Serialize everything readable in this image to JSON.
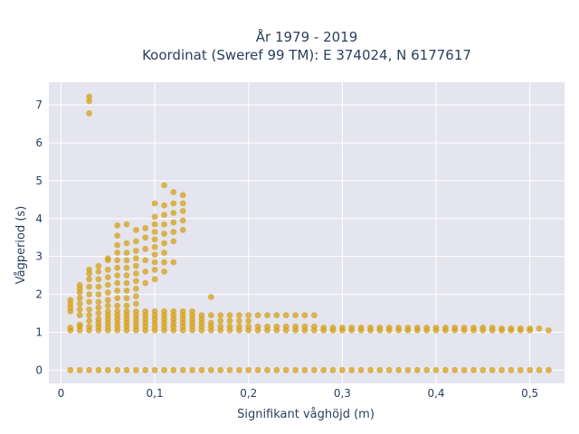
{
  "chart_data": {
    "type": "scatter",
    "title_line1": "År 1979 - 2019",
    "title_line2": "Koordinat (Sweref 99 TM): E 374024, N 6177617",
    "xlabel": "Signifikant våghöjd (m)",
    "ylabel": "Vågperiod (s)",
    "xlim": [
      -0.013,
      0.537
    ],
    "ylim": [
      -0.35,
      7.6
    ],
    "x_ticks": [
      0,
      0.1,
      0.2,
      0.3,
      0.4,
      0.5
    ],
    "x_tick_labels": [
      "0",
      "0,1",
      "0,2",
      "0,3",
      "0,4",
      "0,5"
    ],
    "y_ticks": [
      0,
      1,
      2,
      3,
      4,
      5,
      6,
      7
    ],
    "y_tick_labels": [
      "0",
      "1",
      "2",
      "3",
      "4",
      "5",
      "6",
      "7"
    ],
    "grid": true,
    "marker_color": "#d4a017",
    "plot_background": "#e5e5ef",
    "points": [
      [
        0.01,
        0.0
      ],
      [
        0.02,
        0.0
      ],
      [
        0.03,
        0.0
      ],
      [
        0.04,
        0.0
      ],
      [
        0.05,
        0.0
      ],
      [
        0.06,
        0.0
      ],
      [
        0.07,
        0.0
      ],
      [
        0.08,
        0.0
      ],
      [
        0.09,
        0.0
      ],
      [
        0.1,
        0.0
      ],
      [
        0.11,
        0.0
      ],
      [
        0.12,
        0.0
      ],
      [
        0.13,
        0.0
      ],
      [
        0.14,
        0.0
      ],
      [
        0.15,
        0.0
      ],
      [
        0.16,
        0.0
      ],
      [
        0.17,
        0.0
      ],
      [
        0.18,
        0.0
      ],
      [
        0.19,
        0.0
      ],
      [
        0.2,
        0.0
      ],
      [
        0.21,
        0.0
      ],
      [
        0.22,
        0.0
      ],
      [
        0.23,
        0.0
      ],
      [
        0.24,
        0.0
      ],
      [
        0.25,
        0.0
      ],
      [
        0.26,
        0.0
      ],
      [
        0.27,
        0.0
      ],
      [
        0.28,
        0.0
      ],
      [
        0.29,
        0.0
      ],
      [
        0.3,
        0.0
      ],
      [
        0.31,
        0.0
      ],
      [
        0.32,
        0.0
      ],
      [
        0.33,
        0.0
      ],
      [
        0.34,
        0.0
      ],
      [
        0.35,
        0.0
      ],
      [
        0.36,
        0.0
      ],
      [
        0.37,
        0.0
      ],
      [
        0.38,
        0.0
      ],
      [
        0.39,
        0.0
      ],
      [
        0.4,
        0.0
      ],
      [
        0.41,
        0.0
      ],
      [
        0.42,
        0.0
      ],
      [
        0.43,
        0.0
      ],
      [
        0.44,
        0.0
      ],
      [
        0.45,
        0.0
      ],
      [
        0.46,
        0.0
      ],
      [
        0.47,
        0.0
      ],
      [
        0.48,
        0.0
      ],
      [
        0.49,
        0.0
      ],
      [
        0.5,
        0.0
      ],
      [
        0.51,
        0.0
      ],
      [
        0.52,
        0.0
      ],
      [
        0.01,
        1.05
      ],
      [
        0.01,
        1.12
      ],
      [
        0.01,
        1.55
      ],
      [
        0.01,
        1.65
      ],
      [
        0.01,
        1.75
      ],
      [
        0.01,
        1.85
      ],
      [
        0.02,
        1.05
      ],
      [
        0.02,
        1.15
      ],
      [
        0.02,
        1.2
      ],
      [
        0.02,
        1.45
      ],
      [
        0.02,
        1.6
      ],
      [
        0.02,
        1.75
      ],
      [
        0.02,
        1.9
      ],
      [
        0.02,
        2.05
      ],
      [
        0.02,
        2.15
      ],
      [
        0.02,
        2.25
      ],
      [
        0.03,
        1.05
      ],
      [
        0.03,
        1.15
      ],
      [
        0.03,
        1.3
      ],
      [
        0.03,
        1.45
      ],
      [
        0.03,
        1.6
      ],
      [
        0.03,
        1.8
      ],
      [
        0.03,
        2.0
      ],
      [
        0.03,
        2.2
      ],
      [
        0.03,
        2.4
      ],
      [
        0.03,
        2.55
      ],
      [
        0.03,
        2.65
      ],
      [
        0.03,
        6.78
      ],
      [
        0.03,
        7.1
      ],
      [
        0.03,
        7.22
      ],
      [
        0.04,
        1.05
      ],
      [
        0.04,
        1.15
      ],
      [
        0.04,
        1.25
      ],
      [
        0.04,
        1.35
      ],
      [
        0.04,
        1.5
      ],
      [
        0.04,
        1.65
      ],
      [
        0.04,
        1.8
      ],
      [
        0.04,
        2.0
      ],
      [
        0.04,
        2.2
      ],
      [
        0.04,
        2.4
      ],
      [
        0.04,
        2.6
      ],
      [
        0.04,
        2.75
      ],
      [
        0.05,
        1.05
      ],
      [
        0.05,
        1.15
      ],
      [
        0.05,
        1.25
      ],
      [
        0.05,
        1.35
      ],
      [
        0.05,
        1.45
      ],
      [
        0.05,
        1.55
      ],
      [
        0.05,
        1.7
      ],
      [
        0.05,
        1.85
      ],
      [
        0.05,
        2.05
      ],
      [
        0.05,
        2.25
      ],
      [
        0.05,
        2.45
      ],
      [
        0.05,
        2.65
      ],
      [
        0.05,
        2.9
      ],
      [
        0.05,
        2.95
      ],
      [
        0.06,
        1.05
      ],
      [
        0.06,
        1.15
      ],
      [
        0.06,
        1.25
      ],
      [
        0.06,
        1.35
      ],
      [
        0.06,
        1.45
      ],
      [
        0.06,
        1.55
      ],
      [
        0.06,
        1.7
      ],
      [
        0.06,
        1.9
      ],
      [
        0.06,
        2.1
      ],
      [
        0.06,
        2.3
      ],
      [
        0.06,
        2.5
      ],
      [
        0.06,
        2.7
      ],
      [
        0.06,
        2.9
      ],
      [
        0.06,
        3.1
      ],
      [
        0.06,
        3.3
      ],
      [
        0.06,
        3.55
      ],
      [
        0.06,
        3.82
      ],
      [
        0.07,
        1.05
      ],
      [
        0.07,
        1.15
      ],
      [
        0.07,
        1.25
      ],
      [
        0.07,
        1.35
      ],
      [
        0.07,
        1.45
      ],
      [
        0.07,
        1.55
      ],
      [
        0.07,
        1.7
      ],
      [
        0.07,
        1.9
      ],
      [
        0.07,
        2.1
      ],
      [
        0.07,
        2.3
      ],
      [
        0.07,
        2.5
      ],
      [
        0.07,
        2.7
      ],
      [
        0.07,
        2.9
      ],
      [
        0.07,
        3.1
      ],
      [
        0.07,
        3.35
      ],
      [
        0.07,
        3.85
      ],
      [
        0.08,
        1.05
      ],
      [
        0.08,
        1.15
      ],
      [
        0.08,
        1.25
      ],
      [
        0.08,
        1.35
      ],
      [
        0.08,
        1.45
      ],
      [
        0.08,
        1.55
      ],
      [
        0.08,
        1.75
      ],
      [
        0.08,
        1.95
      ],
      [
        0.08,
        2.15
      ],
      [
        0.08,
        2.35
      ],
      [
        0.08,
        2.55
      ],
      [
        0.08,
        2.75
      ],
      [
        0.08,
        2.95
      ],
      [
        0.08,
        3.15
      ],
      [
        0.08,
        3.4
      ],
      [
        0.08,
        3.7
      ],
      [
        0.09,
        1.05
      ],
      [
        0.09,
        1.15
      ],
      [
        0.09,
        1.25
      ],
      [
        0.09,
        1.35
      ],
      [
        0.09,
        1.45
      ],
      [
        0.09,
        1.55
      ],
      [
        0.09,
        2.3
      ],
      [
        0.09,
        2.6
      ],
      [
        0.09,
        2.9
      ],
      [
        0.09,
        3.2
      ],
      [
        0.09,
        3.5
      ],
      [
        0.09,
        3.75
      ],
      [
        0.1,
        1.05
      ],
      [
        0.1,
        1.15
      ],
      [
        0.1,
        1.25
      ],
      [
        0.1,
        1.35
      ],
      [
        0.1,
        1.45
      ],
      [
        0.1,
        1.55
      ],
      [
        0.1,
        2.4
      ],
      [
        0.1,
        2.65
      ],
      [
        0.1,
        2.85
      ],
      [
        0.1,
        3.05
      ],
      [
        0.1,
        3.25
      ],
      [
        0.1,
        3.45
      ],
      [
        0.1,
        3.65
      ],
      [
        0.1,
        3.85
      ],
      [
        0.1,
        4.05
      ],
      [
        0.1,
        4.4
      ],
      [
        0.11,
        1.05
      ],
      [
        0.11,
        1.15
      ],
      [
        0.11,
        1.25
      ],
      [
        0.11,
        1.35
      ],
      [
        0.11,
        1.45
      ],
      [
        0.11,
        1.55
      ],
      [
        0.11,
        2.6
      ],
      [
        0.11,
        2.85
      ],
      [
        0.11,
        3.1
      ],
      [
        0.11,
        3.35
      ],
      [
        0.11,
        3.6
      ],
      [
        0.11,
        3.85
      ],
      [
        0.11,
        4.1
      ],
      [
        0.11,
        4.35
      ],
      [
        0.11,
        4.88
      ],
      [
        0.12,
        1.05
      ],
      [
        0.12,
        1.15
      ],
      [
        0.12,
        1.25
      ],
      [
        0.12,
        1.35
      ],
      [
        0.12,
        1.45
      ],
      [
        0.12,
        1.55
      ],
      [
        0.12,
        2.85
      ],
      [
        0.12,
        3.4
      ],
      [
        0.12,
        3.65
      ],
      [
        0.12,
        3.9
      ],
      [
        0.12,
        4.15
      ],
      [
        0.12,
        4.4
      ],
      [
        0.12,
        4.7
      ],
      [
        0.13,
        1.05
      ],
      [
        0.13,
        1.15
      ],
      [
        0.13,
        1.25
      ],
      [
        0.13,
        1.35
      ],
      [
        0.13,
        1.45
      ],
      [
        0.13,
        1.55
      ],
      [
        0.13,
        3.7
      ],
      [
        0.13,
        3.95
      ],
      [
        0.13,
        4.2
      ],
      [
        0.13,
        4.4
      ],
      [
        0.13,
        4.62
      ],
      [
        0.14,
        1.05
      ],
      [
        0.14,
        1.15
      ],
      [
        0.14,
        1.25
      ],
      [
        0.14,
        1.35
      ],
      [
        0.14,
        1.45
      ],
      [
        0.14,
        1.55
      ],
      [
        0.15,
        1.05
      ],
      [
        0.15,
        1.15
      ],
      [
        0.15,
        1.25
      ],
      [
        0.15,
        1.35
      ],
      [
        0.15,
        1.45
      ],
      [
        0.16,
        1.05
      ],
      [
        0.16,
        1.15
      ],
      [
        0.16,
        1.25
      ],
      [
        0.16,
        1.45
      ],
      [
        0.16,
        1.93
      ],
      [
        0.17,
        1.05
      ],
      [
        0.17,
        1.15
      ],
      [
        0.17,
        1.3
      ],
      [
        0.17,
        1.45
      ],
      [
        0.18,
        1.05
      ],
      [
        0.18,
        1.15
      ],
      [
        0.18,
        1.3
      ],
      [
        0.18,
        1.45
      ],
      [
        0.19,
        1.05
      ],
      [
        0.19,
        1.15
      ],
      [
        0.19,
        1.3
      ],
      [
        0.19,
        1.45
      ],
      [
        0.2,
        1.05
      ],
      [
        0.2,
        1.15
      ],
      [
        0.2,
        1.3
      ],
      [
        0.2,
        1.45
      ],
      [
        0.21,
        1.05
      ],
      [
        0.21,
        1.15
      ],
      [
        0.21,
        1.45
      ],
      [
        0.22,
        1.05
      ],
      [
        0.22,
        1.15
      ],
      [
        0.22,
        1.45
      ],
      [
        0.23,
        1.05
      ],
      [
        0.23,
        1.15
      ],
      [
        0.23,
        1.45
      ],
      [
        0.24,
        1.05
      ],
      [
        0.24,
        1.15
      ],
      [
        0.24,
        1.45
      ],
      [
        0.25,
        1.05
      ],
      [
        0.25,
        1.15
      ],
      [
        0.25,
        1.45
      ],
      [
        0.26,
        1.05
      ],
      [
        0.26,
        1.15
      ],
      [
        0.26,
        1.45
      ],
      [
        0.27,
        1.05
      ],
      [
        0.27,
        1.15
      ],
      [
        0.27,
        1.45
      ],
      [
        0.28,
        1.05
      ],
      [
        0.28,
        1.12
      ],
      [
        0.29,
        1.05
      ],
      [
        0.29,
        1.12
      ],
      [
        0.3,
        1.05
      ],
      [
        0.3,
        1.12
      ],
      [
        0.31,
        1.05
      ],
      [
        0.31,
        1.12
      ],
      [
        0.32,
        1.05
      ],
      [
        0.32,
        1.12
      ],
      [
        0.33,
        1.05
      ],
      [
        0.33,
        1.12
      ],
      [
        0.34,
        1.05
      ],
      [
        0.34,
        1.12
      ],
      [
        0.35,
        1.05
      ],
      [
        0.35,
        1.12
      ],
      [
        0.36,
        1.05
      ],
      [
        0.36,
        1.12
      ],
      [
        0.37,
        1.05
      ],
      [
        0.37,
        1.12
      ],
      [
        0.38,
        1.05
      ],
      [
        0.38,
        1.12
      ],
      [
        0.39,
        1.05
      ],
      [
        0.39,
        1.12
      ],
      [
        0.4,
        1.05
      ],
      [
        0.4,
        1.12
      ],
      [
        0.41,
        1.05
      ],
      [
        0.41,
        1.12
      ],
      [
        0.42,
        1.05
      ],
      [
        0.42,
        1.12
      ],
      [
        0.43,
        1.05
      ],
      [
        0.43,
        1.12
      ],
      [
        0.44,
        1.05
      ],
      [
        0.44,
        1.12
      ],
      [
        0.45,
        1.05
      ],
      [
        0.45,
        1.12
      ],
      [
        0.46,
        1.05
      ],
      [
        0.46,
        1.12
      ],
      [
        0.47,
        1.05
      ],
      [
        0.47,
        1.1
      ],
      [
        0.48,
        1.05
      ],
      [
        0.48,
        1.1
      ],
      [
        0.49,
        1.05
      ],
      [
        0.49,
        1.1
      ],
      [
        0.5,
        1.05
      ],
      [
        0.5,
        1.1
      ],
      [
        0.51,
        1.1
      ],
      [
        0.52,
        1.05
      ]
    ]
  }
}
